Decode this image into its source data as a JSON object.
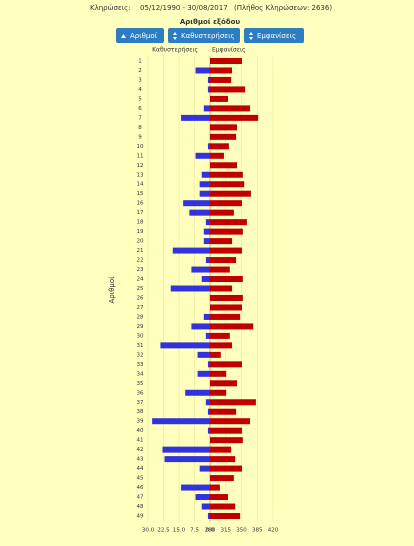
{
  "header": {
    "label": "Κληρώσεις:",
    "range": "05/12/1990 - 30/08/2017",
    "count_text": "(Πλήθος Κληρώσεων: 2636)"
  },
  "buttons": [
    "Αριθμοί",
    "Καθυστερήσεις",
    "Εμφανίσεις"
  ],
  "chart_data": {
    "type": "bar",
    "title": "Αριθμοί εξόδου",
    "ylabel": "Αριθμοί",
    "categories": [
      "1",
      "2",
      "3",
      "4",
      "5",
      "6",
      "7",
      "8",
      "9",
      "10",
      "11",
      "12",
      "13",
      "14",
      "15",
      "16",
      "17",
      "18",
      "19",
      "20",
      "21",
      "22",
      "23",
      "24",
      "25",
      "26",
      "27",
      "28",
      "29",
      "30",
      "31",
      "32",
      "33",
      "34",
      "35",
      "36",
      "37",
      "38",
      "39",
      "40",
      "41",
      "42",
      "43",
      "44",
      "45",
      "46",
      "47",
      "48",
      "49"
    ],
    "grid": true,
    "series": [
      {
        "name": "Καθυστερήσεις",
        "color": "#3333dd",
        "side": "left",
        "values": [
          0,
          7,
          1,
          1,
          0,
          3,
          14,
          0,
          0,
          1,
          7,
          0,
          4,
          5,
          5,
          13,
          10,
          2,
          3,
          3,
          18,
          2,
          9,
          4,
          19,
          0,
          0,
          3,
          9,
          2,
          24,
          6,
          1,
          6,
          0,
          12,
          2,
          1,
          28,
          1,
          0,
          23,
          22,
          5,
          0,
          14,
          7,
          4,
          1
        ],
        "xlim": [
          0,
          30
        ],
        "xticks": [
          {
            "value": 30,
            "label": "30.0"
          },
          {
            "value": 22.5,
            "label": "22.5"
          },
          {
            "value": 15,
            "label": "15.0"
          },
          7.5,
          {
            "value": 0,
            "label": "0.0"
          }
        ]
      },
      {
        "name": "Εμφανίσεις",
        "color": "#c00000",
        "side": "right",
        "values": [
          351,
          329,
          327,
          358,
          320,
          369,
          387,
          340,
          338,
          322,
          311,
          340,
          353,
          356,
          371,
          351,
          333,
          362,
          353,
          329,
          351,
          338,
          324,
          353,
          329,
          353,
          351,
          347,
          376,
          324,
          329,
          304,
          351,
          316,
          340,
          316,
          382,
          338,
          369,
          351,
          353,
          327,
          336,
          351,
          333,
          302,
          320,
          336,
          347
        ],
        "xlim": [
          280,
          420
        ],
        "xticks": [
          280,
          315,
          350,
          385,
          420
        ]
      }
    ]
  }
}
